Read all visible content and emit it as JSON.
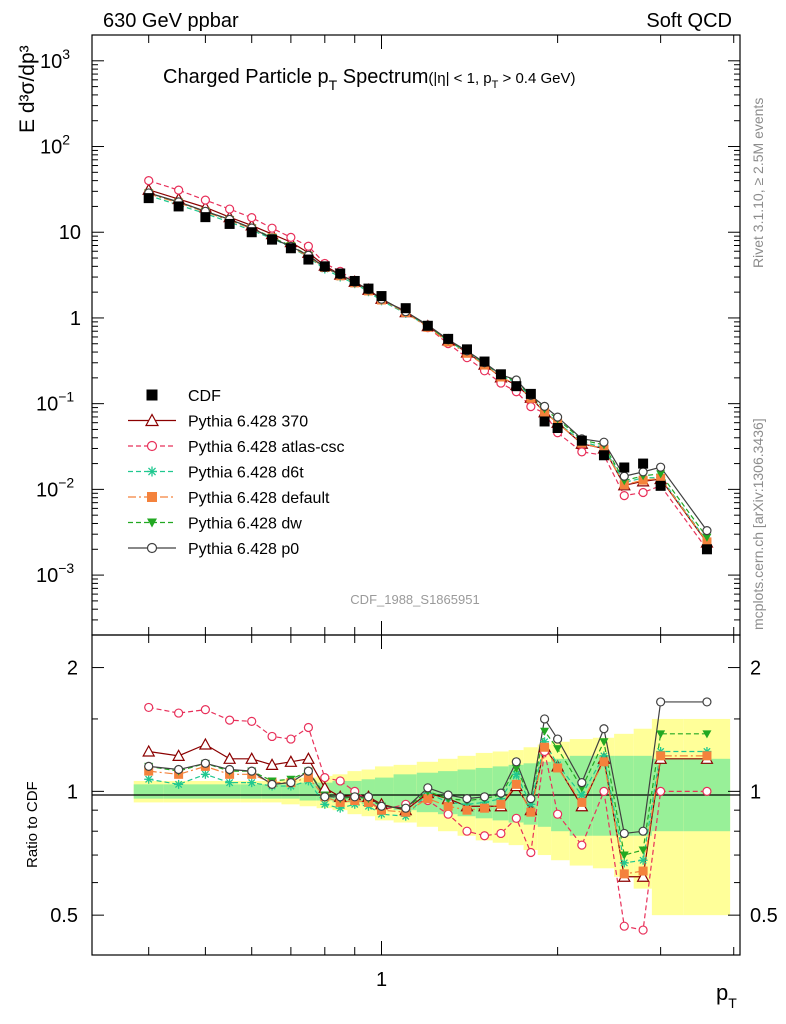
{
  "header": {
    "left": "630 GeV ppbar",
    "right": "Soft QCD"
  },
  "side_labels": {
    "rivet": "Rivet 3.1.10, ≥ 2.5M events",
    "mcplots": "mcplots.cern.ch [arXiv:1306.3436]"
  },
  "title": {
    "main": "Charged Particle p",
    "main_sub": "T",
    "main_tail": " Spectrum",
    "cut_a": "(|η| < 1, p",
    "cut_sub": "T",
    "cut_b": " > 0.4 GeV)"
  },
  "watermark": "CDF_1988_S1865951",
  "ylabel_main": "E d³σ/dp³",
  "ylabel_ratio": "Ratio to CDF",
  "xlabel": "p",
  "xlabel_sub": "T",
  "x_tick_labels": [
    {
      "value": 1,
      "label": "1"
    }
  ],
  "y_tick_labels_main": [
    {
      "exp": -3,
      "base": "10",
      "sup": "−3"
    },
    {
      "exp": -2,
      "base": "10",
      "sup": "−2"
    },
    {
      "exp": -1,
      "base": "10",
      "sup": "−1"
    },
    {
      "exp": 0,
      "base": "1",
      "sup": ""
    },
    {
      "exp": 1,
      "base": "10",
      "sup": ""
    },
    {
      "exp": 2,
      "base": "10",
      "sup": "2"
    },
    {
      "exp": 3,
      "base": "10",
      "sup": "3"
    }
  ],
  "y_tick_labels_ratio": [
    {
      "value": 0.5,
      "label": "0.5"
    },
    {
      "value": 1,
      "label": "1"
    },
    {
      "value": 2,
      "label": "2"
    }
  ],
  "chart_data": {
    "type": "scatter",
    "x_scale": "log",
    "y_scale": "log",
    "xlim": [
      0.32,
      4.1
    ],
    "ylim": [
      0.0002,
      2000
    ],
    "ratio_ylim": [
      0.4,
      2.4
    ],
    "x": [
      0.4,
      0.45,
      0.5,
      0.55,
      0.6,
      0.65,
      0.7,
      0.75,
      0.8,
      0.85,
      0.9,
      0.95,
      1.0,
      1.1,
      1.2,
      1.3,
      1.4,
      1.5,
      1.6,
      1.7,
      1.8,
      1.9,
      2.0,
      2.2,
      2.4,
      2.6,
      2.8,
      3.0,
      3.6
    ],
    "band_inner": [
      0.04,
      0.04,
      0.04,
      0.04,
      0.04,
      0.04,
      0.04,
      0.05,
      0.05,
      0.06,
      0.06,
      0.07,
      0.08,
      0.1,
      0.11,
      0.12,
      0.13,
      0.14,
      0.15,
      0.16,
      0.17,
      0.18,
      0.2,
      0.22,
      0.22,
      0.22,
      0.22,
      0.2,
      0.2
    ],
    "band_outer": [
      0.06,
      0.06,
      0.06,
      0.06,
      0.06,
      0.06,
      0.07,
      0.08,
      0.09,
      0.1,
      0.12,
      0.13,
      0.15,
      0.16,
      0.18,
      0.2,
      0.22,
      0.24,
      0.25,
      0.26,
      0.28,
      0.3,
      0.32,
      0.34,
      0.35,
      0.38,
      0.42,
      0.5,
      0.5
    ],
    "series": [
      {
        "name": "CDF",
        "kind": "data",
        "marker": "square-filled",
        "color": "#000000",
        "values": [
          25,
          20,
          15,
          12.5,
          10,
          8.2,
          6.5,
          4.8,
          4.0,
          3.3,
          2.7,
          2.2,
          1.8,
          1.3,
          0.81,
          0.57,
          0.43,
          0.31,
          0.22,
          0.16,
          0.13,
          0.062,
          0.052,
          0.037,
          0.025,
          0.018,
          0.02,
          0.011,
          0.002
        ]
      },
      {
        "name": "Pythia 6.428 370",
        "marker": "triangle-open",
        "color": "#8b0000",
        "dash": "",
        "ratio": [
          1.25,
          1.22,
          1.3,
          1.2,
          1.2,
          1.16,
          1.18,
          1.2,
          1.02,
          0.97,
          0.98,
          0.97,
          0.93,
          0.9,
          0.99,
          0.96,
          0.92,
          0.92,
          0.92,
          1.03,
          0.9,
          1.28,
          1.15,
          0.92,
          1.2,
          0.62,
          0.62,
          1.2,
          1.2
        ]
      },
      {
        "name": "Pythia 6.428 atlas-csc",
        "marker": "circle-open",
        "color": "#e8305a",
        "dash": "5,3",
        "ratio": [
          1.6,
          1.55,
          1.58,
          1.49,
          1.48,
          1.36,
          1.34,
          1.43,
          1.08,
          1.06,
          1.0,
          0.95,
          0.9,
          0.93,
          0.95,
          0.88,
          0.8,
          0.78,
          0.79,
          0.86,
          0.71,
          1.25,
          0.88,
          0.74,
          1.0,
          0.47,
          0.46,
          1.0,
          1.0
        ]
      },
      {
        "name": "Pythia 6.428 d6t",
        "marker": "asterisk",
        "color": "#20c890",
        "dash": "5,3",
        "ratio": [
          1.07,
          1.04,
          1.1,
          1.05,
          1.05,
          1.03,
          1.03,
          1.06,
          0.93,
          0.91,
          0.93,
          0.92,
          0.88,
          0.87,
          0.99,
          0.94,
          0.93,
          0.94,
          0.96,
          1.1,
          0.93,
          1.32,
          1.16,
          0.98,
          1.22,
          0.67,
          0.68,
          1.25,
          1.25
        ]
      },
      {
        "name": "Pythia 6.428 default",
        "marker": "square-filled",
        "color": "#f4823c",
        "dash": "8,3,2,3",
        "ratio": [
          1.12,
          1.1,
          1.15,
          1.1,
          1.1,
          1.05,
          1.05,
          1.08,
          0.97,
          0.94,
          0.95,
          0.94,
          0.9,
          0.89,
          0.96,
          0.92,
          0.9,
          0.91,
          0.93,
          1.04,
          0.89,
          1.28,
          1.14,
          0.94,
          1.18,
          0.63,
          0.64,
          1.22,
          1.22
        ]
      },
      {
        "name": "Pythia 6.428 dw",
        "marker": "triangle-down-filled",
        "color": "#22a822",
        "dash": "5,3",
        "ratio": [
          1.15,
          1.12,
          1.17,
          1.12,
          1.12,
          1.06,
          1.07,
          1.12,
          0.98,
          0.96,
          0.97,
          0.96,
          0.92,
          0.91,
          1.0,
          0.96,
          0.95,
          0.96,
          0.98,
          1.14,
          0.96,
          1.4,
          1.27,
          1.02,
          1.32,
          0.7,
          0.72,
          1.38,
          1.38
        ]
      },
      {
        "name": "Pythia 6.428 p0",
        "marker": "circle-open",
        "color": "#404040",
        "dash": "",
        "ratio": [
          1.15,
          1.13,
          1.17,
          1.13,
          1.12,
          1.04,
          1.05,
          1.12,
          0.97,
          0.97,
          0.97,
          0.97,
          0.92,
          0.91,
          1.02,
          0.98,
          0.96,
          0.97,
          0.99,
          1.18,
          0.96,
          1.5,
          1.34,
          1.05,
          1.42,
          0.79,
          0.8,
          1.65,
          1.65
        ]
      }
    ]
  }
}
